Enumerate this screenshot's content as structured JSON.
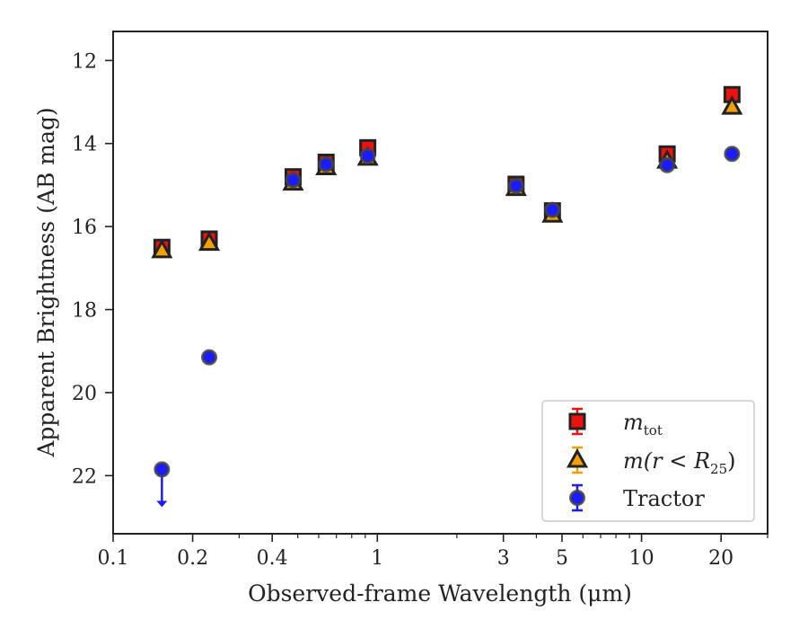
{
  "chart_data": {
    "type": "scatter",
    "xlabel": "Observed-frame Wavelength (μm)",
    "ylabel": "Apparent Brightness (AB mag)",
    "x_scale": "log",
    "xlim": [
      0.1,
      30
    ],
    "ylim": [
      23.4,
      11.3
    ],
    "y_inverted": true,
    "x_tick_labels": [
      "0.1",
      "0.2",
      "0.4",
      "1",
      "3",
      "5",
      "10",
      "20"
    ],
    "x_ticks": [
      0.1,
      0.2,
      0.4,
      1,
      3,
      5,
      10,
      20
    ],
    "y_ticks": [
      12,
      14,
      16,
      18,
      20,
      22
    ],
    "y_tick_labels": [
      "12",
      "14",
      "16",
      "18",
      "20",
      "22"
    ],
    "grid": false,
    "legend_position": "lower-right",
    "series": [
      {
        "name": "m_tot",
        "marker": "square",
        "color": "#ee1111",
        "edge": "#222222",
        "x": [
          0.153,
          0.231,
          0.48,
          0.64,
          0.92,
          3.35,
          4.6,
          12.5,
          22.0
        ],
        "y": [
          16.5,
          16.3,
          14.8,
          14.45,
          14.1,
          14.98,
          15.62,
          14.25,
          12.82
        ]
      },
      {
        "name": "m(r < R25)",
        "marker": "triangle",
        "color": "#f2a100",
        "edge": "#222222",
        "x": [
          0.153,
          0.231,
          0.48,
          0.64,
          0.92,
          3.35,
          4.6,
          12.5,
          22.0
        ],
        "y": [
          16.58,
          16.4,
          14.95,
          14.58,
          14.35,
          15.08,
          15.72,
          14.42,
          13.12
        ]
      },
      {
        "name": "Tractor",
        "marker": "circle",
        "color": "#1b1bff",
        "edge": "#444444",
        "x": [
          0.153,
          0.231,
          0.48,
          0.64,
          0.92,
          3.35,
          4.6,
          12.5,
          22.0
        ],
        "y": [
          21.85,
          19.15,
          14.88,
          14.5,
          14.3,
          15.02,
          15.6,
          14.52,
          14.25
        ],
        "upper_limit": [
          true,
          false,
          false,
          false,
          false,
          false,
          false,
          false,
          false
        ]
      }
    ],
    "legend": [
      {
        "label_main": "m",
        "label_sub": "tot",
        "label_tail": ""
      },
      {
        "label_main": "m(r < R",
        "label_sub": "25",
        "label_tail": ")"
      },
      {
        "label_main": "Tractor",
        "label_sub": "",
        "label_tail": ""
      }
    ]
  }
}
